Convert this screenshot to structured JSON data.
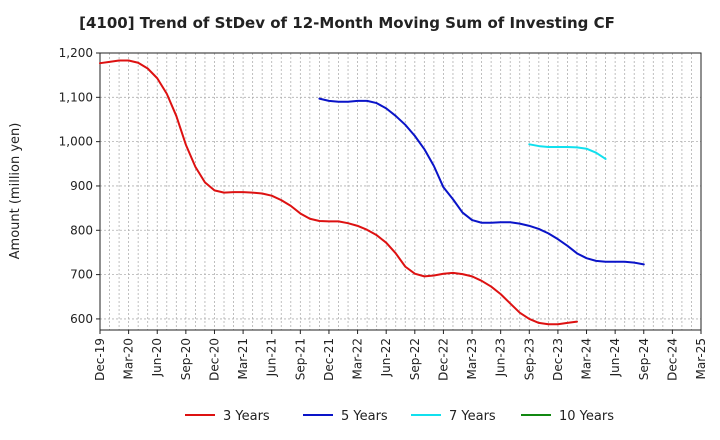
{
  "chart_data": {
    "type": "line",
    "title": "[4100]  Trend of StDev of 12-Month Moving Sum of Investing CF",
    "xlabel": "",
    "ylabel": "Amount (million yen)",
    "ylim": [
      575,
      1200
    ],
    "yticks": [
      600,
      700,
      800,
      900,
      1000,
      1100,
      1200
    ],
    "ytick_labels": [
      "600",
      "700",
      "800",
      "900",
      "1,000",
      "1,100",
      "1,200"
    ],
    "x_start": "Dec-19",
    "x_end": "Mar-25",
    "x_tick_labels": [
      "Dec-19",
      "Mar-20",
      "Jun-20",
      "Sep-20",
      "Dec-20",
      "Mar-21",
      "Jun-21",
      "Sep-21",
      "Dec-21",
      "Mar-22",
      "Jun-22",
      "Sep-22",
      "Dec-22",
      "Mar-23",
      "Jun-23",
      "Sep-23",
      "Dec-23",
      "Mar-24",
      "Jun-24",
      "Sep-24",
      "Dec-24",
      "Mar-25"
    ],
    "grid": true,
    "legend_position": "bottom",
    "series": [
      {
        "name": "3 Years",
        "color": "#dd1111",
        "x_start": "Dec-19",
        "values": [
          1177,
          1180,
          1183,
          1183,
          1178,
          1165,
          1143,
          1108,
          1058,
          993,
          943,
          908,
          890,
          885,
          886,
          886,
          885,
          883,
          878,
          868,
          855,
          838,
          826,
          821,
          820,
          820,
          816,
          810,
          801,
          789,
          772,
          748,
          718,
          702,
          696,
          698,
          702,
          704,
          701,
          696,
          686,
          673,
          656,
          635,
          614,
          600,
          591,
          588,
          588,
          591,
          594
        ]
      },
      {
        "name": "5 Years",
        "color": "#0a14c8",
        "x_start": "Nov-21",
        "values": [
          1097,
          1092,
          1090,
          1090,
          1092,
          1092,
          1087,
          1075,
          1058,
          1038,
          1013,
          983,
          945,
          897,
          870,
          840,
          823,
          817,
          817,
          818,
          818,
          815,
          810,
          803,
          793,
          780,
          765,
          748,
          737,
          731,
          729,
          729,
          729,
          727,
          723
        ]
      },
      {
        "name": "7 Years",
        "color": "#11e0ee",
        "x_start": "Sep-23",
        "values": [
          994,
          990,
          988,
          988,
          988,
          987,
          984,
          975,
          961
        ]
      },
      {
        "name": "10 Years",
        "color": "#118811",
        "x_start": "Sep-23",
        "values": []
      }
    ]
  }
}
